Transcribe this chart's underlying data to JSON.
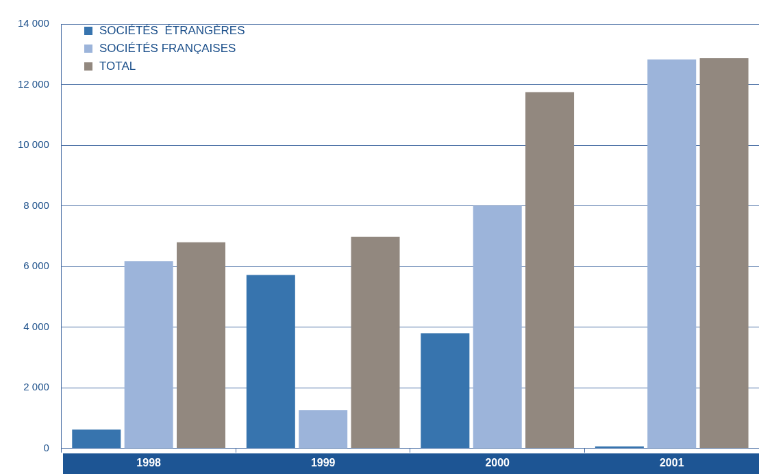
{
  "chart_data": {
    "type": "bar",
    "categories": [
      "1998",
      "1999",
      "2000",
      "2001"
    ],
    "series": [
      {
        "name": "SOCIÉTÉS  ÉTRANGÈRES",
        "color": "#3774ae",
        "values": [
          620,
          5720,
          3800,
          70
        ]
      },
      {
        "name": "SOCIÉTÉS FRANÇAISES",
        "color": "#9cb4da",
        "values": [
          6180,
          1260,
          8000,
          12830
        ]
      },
      {
        "name": "TOTAL",
        "color": "#92887f",
        "values": [
          6800,
          6980,
          11750,
          12870
        ]
      }
    ],
    "ylim": [
      0,
      14000
    ],
    "yticks": [
      {
        "value": 0,
        "label": "0"
      },
      {
        "value": 2000,
        "label": "2 000"
      },
      {
        "value": 4000,
        "label": "4 000"
      },
      {
        "value": 6000,
        "label": "6 000"
      },
      {
        "value": 8000,
        "label": "8 000"
      },
      {
        "value": 10000,
        "label": "10 000"
      },
      {
        "value": 12000,
        "label": "12 000"
      },
      {
        "value": 14000,
        "label": "14 000"
      }
    ],
    "grid": "y",
    "legend": "top left"
  }
}
